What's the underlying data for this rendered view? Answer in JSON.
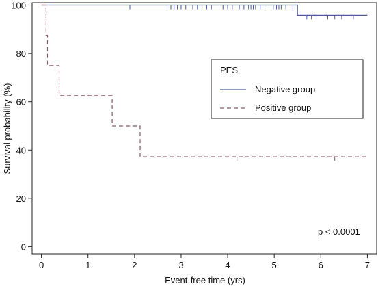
{
  "chart_data": {
    "type": "line",
    "subtype": "kaplan-meier step",
    "xlabel": "Event-free time (yrs)",
    "ylabel": "Survival probability (%)",
    "xlim": [
      -0.2,
      7.2
    ],
    "ylim": [
      -3,
      101
    ],
    "x_ticks": [
      0,
      1,
      2,
      3,
      4,
      5,
      6,
      7
    ],
    "y_ticks": [
      0,
      20,
      40,
      60,
      80,
      100
    ],
    "grid": false,
    "legend": {
      "title": "PES",
      "placement": "right",
      "entries": [
        "Negative group",
        "Positive group"
      ]
    },
    "annotation": "p < 0.0001",
    "series": [
      {
        "name": "Negative group",
        "color": "#4a5a9a",
        "dash": "solid",
        "steps": [
          [
            0,
            100
          ],
          [
            5.5,
            100
          ],
          [
            5.5,
            95.8
          ],
          [
            7,
            95.8
          ]
        ],
        "censor_ticks": [
          [
            1.9,
            100
          ],
          [
            2.7,
            100
          ],
          [
            2.78,
            100
          ],
          [
            2.85,
            100
          ],
          [
            2.92,
            100
          ],
          [
            3.0,
            100
          ],
          [
            3.1,
            100
          ],
          [
            3.25,
            100
          ],
          [
            3.35,
            100
          ],
          [
            3.45,
            100
          ],
          [
            3.55,
            100
          ],
          [
            3.65,
            100
          ],
          [
            3.9,
            100
          ],
          [
            4.0,
            100
          ],
          [
            4.1,
            100
          ],
          [
            4.25,
            100
          ],
          [
            4.35,
            100
          ],
          [
            4.45,
            100
          ],
          [
            4.5,
            100
          ],
          [
            4.55,
            100
          ],
          [
            4.6,
            100
          ],
          [
            4.7,
            100
          ],
          [
            4.8,
            100
          ],
          [
            4.98,
            100
          ],
          [
            5.05,
            100
          ],
          [
            5.1,
            100
          ],
          [
            5.15,
            100
          ],
          [
            5.25,
            100
          ],
          [
            5.4,
            100
          ],
          [
            5.7,
            95.8
          ],
          [
            5.8,
            95.8
          ],
          [
            5.9,
            95.8
          ],
          [
            6.15,
            95.8
          ],
          [
            6.3,
            95.8
          ],
          [
            6.45,
            95.8
          ],
          [
            6.7,
            95.8
          ]
        ]
      },
      {
        "name": "Positive group",
        "color": "#8a5a6a",
        "dash": "dashed",
        "steps": [
          [
            0,
            100
          ],
          [
            0.1,
            100
          ],
          [
            0.1,
            87.5
          ],
          [
            0.13,
            87.5
          ],
          [
            0.13,
            75
          ],
          [
            0.38,
            75
          ],
          [
            0.38,
            62.5
          ],
          [
            1.52,
            62.5
          ],
          [
            1.52,
            50
          ],
          [
            2.12,
            50
          ],
          [
            2.12,
            37.2
          ],
          [
            7,
            37.2
          ]
        ],
        "censor_ticks": [
          [
            4.2,
            37.2
          ],
          [
            6.3,
            37.2
          ]
        ]
      }
    ]
  }
}
